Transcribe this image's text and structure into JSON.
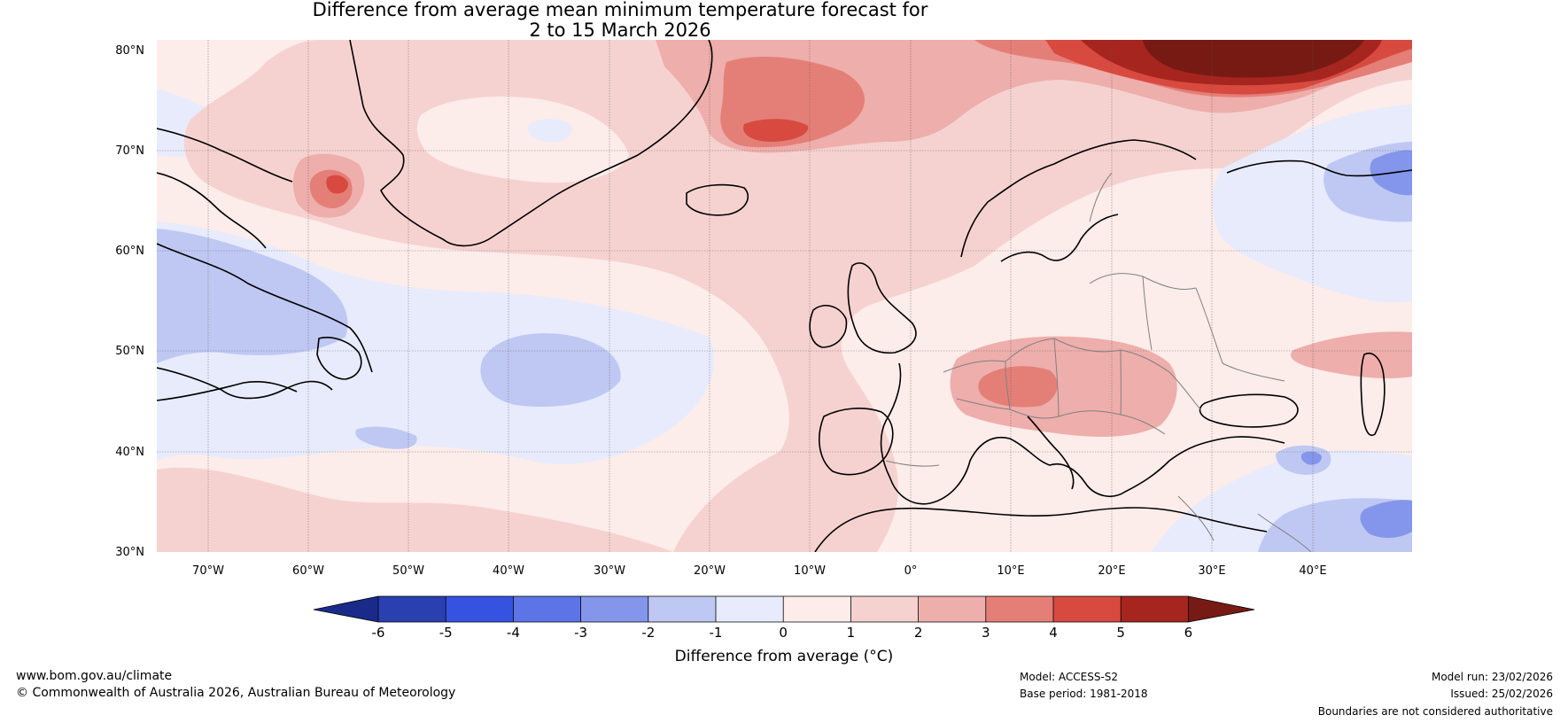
{
  "title": {
    "line1": "Difference from average mean minimum temperature forecast for",
    "line2": "2 to 15 March 2026"
  },
  "map": {
    "region": "North Atlantic and Europe",
    "lat_labels": [
      "80°N",
      "70°N",
      "60°N",
      "50°N",
      "40°N",
      "30°N"
    ],
    "lon_labels": [
      "70°W",
      "60°W",
      "50°W",
      "40°W",
      "30°W",
      "20°W",
      "10°W",
      "0°",
      "10°E",
      "20°E",
      "30°E",
      "40°E"
    ],
    "anomaly_fill_colors": {
      "below_-6": "#1a2a8a",
      "-6_-5": "#2a3fb0",
      "-5_-4": "#3553e0",
      "-4_-3": "#5c74e6",
      "-3_-2": "#8496eb",
      "-2_-1": "#bfc8f3",
      "-1_0": "#e7ebfc",
      "0_1": "#fcecea",
      "1_2": "#f5d2d0",
      "2_3": "#eeaeab",
      "3_4": "#e47f78",
      "4_5": "#d84a40",
      "5_6": "#a6261f",
      "above_6": "#781a14"
    },
    "coast_color": "#000000",
    "border_color": "#808080"
  },
  "colorbar": {
    "ticks": [
      "-6",
      "-5",
      "-4",
      "-3",
      "-2",
      "-1",
      "0",
      "1",
      "2",
      "3",
      "4",
      "5",
      "6"
    ],
    "label": "Difference from average (°C)",
    "colors": [
      "#1a2a8a",
      "#2a3fb0",
      "#3553e0",
      "#5c74e6",
      "#8496eb",
      "#bfc8f3",
      "#e7ebfc",
      "#fcecea",
      "#f5d2d0",
      "#eeaeab",
      "#e47f78",
      "#d84a40",
      "#a6261f",
      "#781a14"
    ]
  },
  "footer": {
    "website": "www.bom.gov.au/climate",
    "copyright": "© Commonwealth of Australia 2026, Australian Bureau of Meteorology",
    "model": "Model: ACCESS-S2",
    "base_period": "Base period: 1981-2018",
    "model_run": "Model run: 23/02/2026",
    "issued": "Issued: 25/02/2026",
    "disclaimer": "Boundaries are not considered authoritative"
  }
}
